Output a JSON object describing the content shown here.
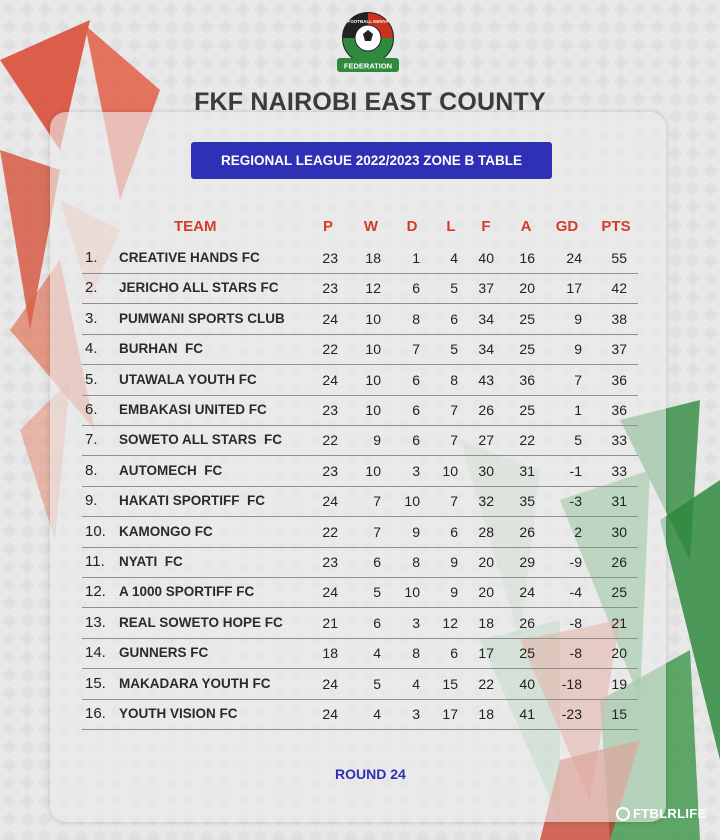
{
  "heading": "FKF NAIROBI EAST COUNTY",
  "banner": "REGIONAL LEAGUE 2022/2023 ZONE B TABLE",
  "logo": {
    "top_text": "FOOTBALL KENYA",
    "ribbon_text": "FEDERATION"
  },
  "columns": [
    "TEAM",
    "P",
    "W",
    "D",
    "L",
    "F",
    "A",
    "GD",
    "PTS"
  ],
  "rows": [
    {
      "pos": "1.",
      "team": "CREATIVE HANDS FC",
      "p": "23",
      "w": "18",
      "d": "1",
      "l": "4",
      "f": "40",
      "a": "16",
      "gd": "24",
      "pts": "55"
    },
    {
      "pos": "2.",
      "team": "JERICHO ALL STARS FC",
      "p": "23",
      "w": "12",
      "d": "6",
      "l": "5",
      "f": "37",
      "a": "20",
      "gd": "17",
      "pts": "42"
    },
    {
      "pos": "3.",
      "team": "PUMWANI SPORTS CLUB",
      "p": "24",
      "w": "10",
      "d": "8",
      "l": "6",
      "f": "34",
      "a": "25",
      "gd": "9",
      "pts": "38"
    },
    {
      "pos": "4.",
      "team": "BURHAN  FC",
      "p": "22",
      "w": "10",
      "d": "7",
      "l": "5",
      "f": "34",
      "a": "25",
      "gd": "9",
      "pts": "37"
    },
    {
      "pos": "5.",
      "team": "UTAWALA YOUTH FC",
      "p": "24",
      "w": "10",
      "d": "6",
      "l": "8",
      "f": "43",
      "a": "36",
      "gd": "7",
      "pts": "36"
    },
    {
      "pos": "6.",
      "team": "EMBAKASI UNITED FC",
      "p": "23",
      "w": "10",
      "d": "6",
      "l": "7",
      "f": "26",
      "a": "25",
      "gd": "1",
      "pts": "36"
    },
    {
      "pos": "7.",
      "team": "SOWETO ALL STARS  FC",
      "p": "22",
      "w": "9",
      "d": "6",
      "l": "7",
      "f": "27",
      "a": "22",
      "gd": "5",
      "pts": "33"
    },
    {
      "pos": "8.",
      "team": "AUTOMECH  FC",
      "p": "23",
      "w": "10",
      "d": "3",
      "l": "10",
      "f": "30",
      "a": "31",
      "gd": "-1",
      "pts": "33"
    },
    {
      "pos": "9.",
      "team": "HAKATI SPORTIFF  FC",
      "p": "24",
      "w": "7",
      "d": "10",
      "l": "7",
      "f": "32",
      "a": "35",
      "gd": "-3",
      "pts": "31"
    },
    {
      "pos": "10.",
      "team": "KAMONGO FC",
      "p": "22",
      "w": "7",
      "d": "9",
      "l": "6",
      "f": "28",
      "a": "26",
      "gd": "2",
      "pts": "30"
    },
    {
      "pos": "11.",
      "team": "NYATI  FC",
      "p": "23",
      "w": "6",
      "d": "8",
      "l": "9",
      "f": "20",
      "a": "29",
      "gd": "-9",
      "pts": "26"
    },
    {
      "pos": "12.",
      "team": "A 1000 SPORTIFF FC",
      "p": "24",
      "w": "5",
      "d": "10",
      "l": "9",
      "f": "20",
      "a": "24",
      "gd": "-4",
      "pts": "25"
    },
    {
      "pos": "13.",
      "team": "REAL SOWETO HOPE FC",
      "p": "21",
      "w": "6",
      "d": "3",
      "l": "12",
      "f": "18",
      "a": "26",
      "gd": "-8",
      "pts": "21"
    },
    {
      "pos": "14.",
      "team": "GUNNERS FC",
      "p": "18",
      "w": "4",
      "d": "8",
      "l": "6",
      "f": "17",
      "a": "25",
      "gd": "-8",
      "pts": "20"
    },
    {
      "pos": "15.",
      "team": "MAKADARA YOUTH FC",
      "p": "24",
      "w": "5",
      "d": "4",
      "l": "15",
      "f": "22",
      "a": "40",
      "gd": "-18",
      "pts": "19"
    },
    {
      "pos": "16.",
      "team": "YOUTH VISION FC",
      "p": "24",
      "w": "4",
      "d": "3",
      "l": "17",
      "f": "18",
      "a": "41",
      "gd": "-23",
      "pts": "15"
    }
  ],
  "footer": "ROUND 24",
  "watermark": "FTBLRLIFE",
  "colors": {
    "header_red": "#d43c2a",
    "banner_blue": "#2e31b5",
    "kenya_red": "#c8321e",
    "kenya_green": "#2f8a3e"
  }
}
